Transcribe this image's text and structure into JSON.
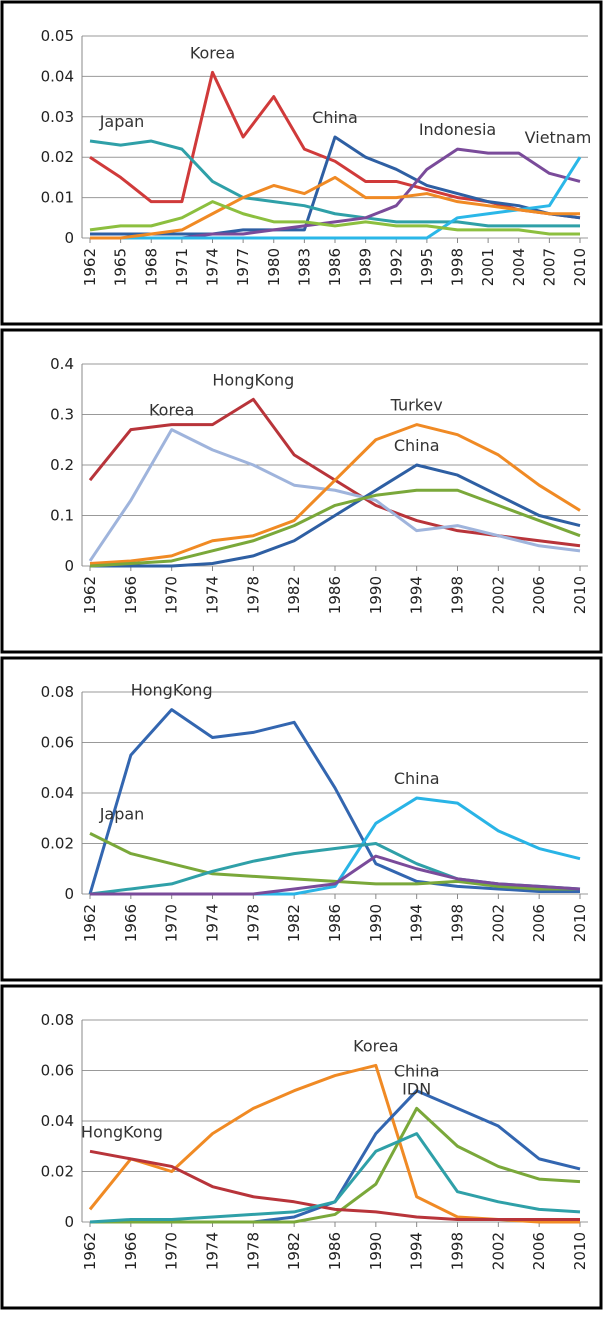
{
  "chart_data": [
    {
      "type": "line",
      "xlim": [
        1962,
        2010
      ],
      "xticks": [
        1962,
        1965,
        1968,
        1971,
        1974,
        1977,
        1980,
        1983,
        1986,
        1989,
        1992,
        1995,
        1998,
        2001,
        2004,
        2007,
        2010
      ],
      "ylim": [
        0,
        0.05
      ],
      "yticks": [
        0,
        0.01,
        0.02,
        0.03,
        0.04,
        0.05
      ],
      "grid": true,
      "x": [
        1962,
        1965,
        1968,
        1971,
        1974,
        1977,
        1980,
        1983,
        1986,
        1989,
        1992,
        1995,
        1998,
        2001,
        2004,
        2007,
        2010
      ],
      "series": [
        {
          "name": "Korea",
          "color": "#d03a3a",
          "values": [
            0.02,
            0.015,
            0.009,
            0.009,
            0.041,
            0.025,
            0.035,
            0.022,
            0.019,
            0.014,
            0.014,
            0.012,
            0.01,
            0.009,
            0.007,
            0.006,
            0.005
          ]
        },
        {
          "name": "China",
          "color": "#2e5fa3",
          "values": [
            0.001,
            0.001,
            0.001,
            0.001,
            0.001,
            0.002,
            0.002,
            0.002,
            0.025,
            0.02,
            0.017,
            0.013,
            0.011,
            0.009,
            0.008,
            0.006,
            0.005
          ]
        },
        {
          "name": "Japan",
          "color": "#2fa0a8",
          "values": [
            0.024,
            0.023,
            0.024,
            0.022,
            0.014,
            0.01,
            0.009,
            0.008,
            0.006,
            0.005,
            0.004,
            0.004,
            0.004,
            0.003,
            0.003,
            0.003,
            0.003
          ]
        },
        {
          "name": "Indonesia",
          "color": "#7a4b9a",
          "values": [
            0,
            0,
            0,
            0,
            0.001,
            0.001,
            0.002,
            0.003,
            0.004,
            0.005,
            0.008,
            0.017,
            0.022,
            0.021,
            0.021,
            0.016,
            0.014
          ]
        },
        {
          "name": "Vietnam",
          "color": "#2ab7e8",
          "values": [
            0,
            0,
            0,
            0,
            0,
            0,
            0,
            0,
            0,
            0,
            0,
            0,
            0.005,
            0.006,
            0.007,
            0.008,
            0.02
          ]
        },
        {
          "color": "#f08a24",
          "values": [
            0,
            0,
            0.001,
            0.002,
            0.006,
            0.01,
            0.013,
            0.011,
            0.015,
            0.01,
            0.01,
            0.011,
            0.009,
            0.008,
            0.007,
            0.006,
            0.006
          ]
        },
        {
          "color": "#8cbf3f",
          "values": [
            0.002,
            0.003,
            0.003,
            0.005,
            0.009,
            0.006,
            0.004,
            0.004,
            0.003,
            0.004,
            0.003,
            0.003,
            0.002,
            0.002,
            0.002,
            0.001,
            0.001
          ]
        }
      ]
    },
    {
      "type": "line",
      "xlim": [
        1962,
        2010
      ],
      "xticks": [
        1962,
        1966,
        1970,
        1974,
        1978,
        1982,
        1986,
        1990,
        1994,
        1998,
        2002,
        2006,
        2010
      ],
      "ylim": [
        0,
        0.4
      ],
      "yticks": [
        0,
        0.1,
        0.2,
        0.3,
        0.4
      ],
      "grid": true,
      "x": [
        1962,
        1966,
        1970,
        1974,
        1978,
        1982,
        1986,
        1990,
        1994,
        1998,
        2002,
        2006,
        2010
      ],
      "series": [
        {
          "name": "HongKong",
          "color": "#b8343a",
          "values": [
            0.17,
            0.27,
            0.28,
            0.28,
            0.33,
            0.22,
            0.17,
            0.12,
            0.09,
            0.07,
            0.06,
            0.05,
            0.04
          ]
        },
        {
          "name": "Korea",
          "color": "#9fb4dc",
          "values": [
            0.01,
            0.13,
            0.27,
            0.23,
            0.2,
            0.16,
            0.15,
            0.13,
            0.07,
            0.08,
            0.06,
            0.04,
            0.03
          ]
        },
        {
          "name": "Turkev",
          "color": "#f08a24",
          "values": [
            0.005,
            0.01,
            0.02,
            0.05,
            0.06,
            0.09,
            0.17,
            0.25,
            0.28,
            0.26,
            0.22,
            0.16,
            0.11
          ]
        },
        {
          "name": "China",
          "color": "#2e5fa3",
          "values": [
            0,
            0,
            0,
            0.005,
            0.02,
            0.05,
            0.1,
            0.15,
            0.2,
            0.18,
            0.14,
            0.1,
            0.08
          ]
        },
        {
          "color": "#7aa83a",
          "values": [
            0,
            0.005,
            0.01,
            0.03,
            0.05,
            0.08,
            0.12,
            0.14,
            0.15,
            0.15,
            0.12,
            0.09,
            0.06
          ]
        }
      ]
    },
    {
      "type": "line",
      "xlim": [
        1962,
        2010
      ],
      "xticks": [
        1962,
        1966,
        1970,
        1974,
        1978,
        1982,
        1986,
        1990,
        1994,
        1998,
        2002,
        2006,
        2010
      ],
      "ylim": [
        0,
        0.08
      ],
      "yticks": [
        0,
        0.02,
        0.04,
        0.06,
        0.08
      ],
      "grid": true,
      "x": [
        1962,
        1966,
        1970,
        1974,
        1978,
        1982,
        1986,
        1990,
        1994,
        1998,
        2002,
        2006,
        2010
      ],
      "series": [
        {
          "name": "HongKong",
          "color": "#3366b0",
          "values": [
            0,
            0.055,
            0.073,
            0.062,
            0.064,
            0.068,
            0.042,
            0.012,
            0.005,
            0.003,
            0.002,
            0.001,
            0.001
          ]
        },
        {
          "name": "China",
          "color": "#29b4e6",
          "values": [
            0,
            0,
            0,
            0,
            0,
            0,
            0.003,
            0.028,
            0.038,
            0.036,
            0.025,
            0.018,
            0.014
          ]
        },
        {
          "name": "Japan",
          "color": "#7aa83a",
          "values": [
            0.024,
            0.016,
            0.012,
            0.008,
            0.007,
            0.006,
            0.005,
            0.004,
            0.004,
            0.005,
            0.003,
            0.002,
            0.002
          ]
        },
        {
          "color": "#2fa0a8",
          "values": [
            0,
            0.002,
            0.004,
            0.009,
            0.013,
            0.016,
            0.018,
            0.02,
            0.012,
            0.006,
            0.004,
            0.003,
            0.002
          ]
        },
        {
          "color": "#7a4b9a",
          "values": [
            0,
            0,
            0,
            0,
            0,
            0.002,
            0.004,
            0.015,
            0.01,
            0.006,
            0.004,
            0.003,
            0.002
          ]
        }
      ]
    },
    {
      "type": "line",
      "xlim": [
        1962,
        2010
      ],
      "xticks": [
        1962,
        1966,
        1970,
        1974,
        1978,
        1982,
        1986,
        1990,
        1994,
        1998,
        2002,
        2006,
        2010
      ],
      "ylim": [
        0,
        0.08
      ],
      "yticks": [
        0,
        0.02,
        0.04,
        0.06,
        0.08
      ],
      "grid": true,
      "x": [
        1962,
        1966,
        1970,
        1974,
        1978,
        1982,
        1986,
        1990,
        1994,
        1998,
        2002,
        2006,
        2010
      ],
      "series": [
        {
          "name": "Korea",
          "color": "#f08a24",
          "values": [
            0.005,
            0.025,
            0.02,
            0.035,
            0.045,
            0.052,
            0.058,
            0.062,
            0.01,
            0.002,
            0.001,
            0,
            0
          ]
        },
        {
          "name": "China",
          "color": "#3366b0",
          "values": [
            0,
            0,
            0,
            0,
            0,
            0.002,
            0.008,
            0.035,
            0.052,
            0.045,
            0.038,
            0.025,
            0.021
          ]
        },
        {
          "name": "IDN",
          "color": "#7aa83a",
          "values": [
            0,
            0,
            0,
            0,
            0,
            0,
            0.003,
            0.015,
            0.045,
            0.03,
            0.022,
            0.017,
            0.016
          ]
        },
        {
          "name": "HongKong",
          "color": "#b8343a",
          "values": [
            0.028,
            0.025,
            0.022,
            0.014,
            0.01,
            0.008,
            0.005,
            0.004,
            0.002,
            0.001,
            0.001,
            0.001,
            0.001
          ]
        },
        {
          "color": "#2fa0a8",
          "values": [
            0,
            0.001,
            0.001,
            0.002,
            0.003,
            0.004,
            0.008,
            0.028,
            0.035,
            0.012,
            0.008,
            0.005,
            0.004
          ]
        }
      ]
    }
  ]
}
